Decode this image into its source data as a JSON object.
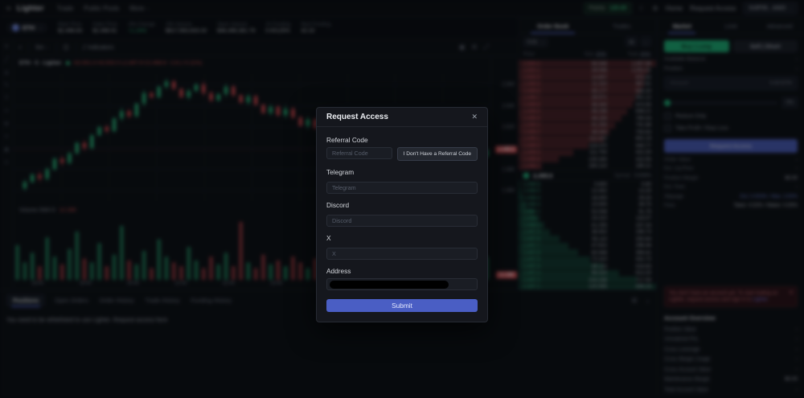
{
  "topnav": {
    "brand": "Lighter",
    "items": [
      {
        "label": "Trade",
        "caret": false
      },
      {
        "label": "Public Pools",
        "caret": false
      },
      {
        "label": "More",
        "caret": true
      }
    ],
    "badge": {
      "label": "Points:",
      "value": "125.00"
    },
    "home_label": "Home",
    "request_access_label": "Request Access",
    "wallet": "0x9F56...4A83"
  },
  "ticker": {
    "symbol": "ETH",
    "stats": [
      {
        "label": "Mark Price",
        "value": "$2,498.63"
      },
      {
        "label": "Index Price",
        "value": "$2,498.91"
      },
      {
        "label": "24h Change",
        "value": "+1.24%",
        "color": "#2ec27e"
      },
      {
        "label": "24h Volume",
        "value": "$617,563,633.33"
      },
      {
        "label": "Open Interest",
        "value": "$46,496,381.79"
      },
      {
        "label": "1h Funding",
        "value": "0.00125%"
      },
      {
        "label": "Next Funding",
        "value": "42:15"
      }
    ]
  },
  "chart": {
    "toolbar": {
      "search": "⌕",
      "timeframe": "5m",
      "indicators_label": "Indicators"
    },
    "tools": [
      "crosshair",
      "trendline",
      "fibonacci",
      "brush",
      "text",
      "measure",
      "zoom",
      "target",
      "record",
      "menu"
    ],
    "legend": {
      "title": "ETH · 5 · Lighter",
      "ohlc": "O2,501.4  H2,502.0  L2,497.9  C2,498.6  −2.8 (−0.11%)"
    },
    "volume_label": "Volume SMA 9",
    "volume_value": "12.28K"
  },
  "chart_data": {
    "type": "candlestick+volume",
    "title": "ETH / 5m / Lighter",
    "ylim": [
      2450,
      2570
    ],
    "price_ticks": [
      2560,
      2540,
      2520,
      2500,
      2480,
      2460
    ],
    "time_ticks": [
      "18:00",
      "19:00",
      "20:00",
      "21:00",
      "22:00",
      "23:00",
      "00:00",
      "01:00",
      "02:00",
      "03:00"
    ],
    "closes": [
      2462,
      2468,
      2475,
      2471,
      2480,
      2490,
      2486,
      2495,
      2505,
      2500,
      2512,
      2520,
      2516,
      2528,
      2535,
      2530,
      2542,
      2552,
      2548,
      2558,
      2563,
      2556,
      2548,
      2554,
      2560,
      2552,
      2545,
      2551,
      2558,
      2550,
      2543,
      2549,
      2541,
      2533,
      2539,
      2531,
      2537,
      2529,
      2521,
      2527,
      2519,
      2511,
      2517,
      2509,
      2501,
      2507,
      2499,
      2491,
      2497,
      2489,
      2481,
      2487,
      2479,
      2471,
      2477,
      2469,
      2463,
      2470,
      2476,
      2482,
      2489,
      2485,
      2492,
      2498.6
    ],
    "volumes": [
      18,
      9,
      14,
      7,
      22,
      12,
      8,
      16,
      25,
      11,
      9,
      19,
      7,
      13,
      28,
      10,
      8,
      15,
      6,
      21,
      12,
      9,
      7,
      17,
      10,
      6,
      12,
      8,
      14,
      7,
      30,
      9,
      6,
      13,
      8,
      10,
      7,
      12,
      9,
      6,
      11,
      8,
      13,
      7,
      10,
      15,
      8,
      6,
      12,
      9,
      7,
      14,
      10,
      8,
      6,
      11,
      9,
      12,
      15,
      9,
      7,
      13,
      10,
      12
    ],
    "volume_max": 30,
    "last_price": 2498.6,
    "last_price_label": "2,498.6",
    "last_volume_label": "12.28K",
    "up_color": "#20b977",
    "down_color": "#e5484d"
  },
  "orderbook": {
    "tabs": [
      "Order Book",
      "Trades"
    ],
    "tick": "0.01",
    "headers": {
      "price": "Price",
      "size": "Size",
      "total": "Total",
      "unit": "ETH"
    },
    "asks": [
      [
        "2,500.2",
        "56.948",
        "1,057.96",
        100
      ],
      [
        "2,500.1",
        "28.598",
        "1,001.01",
        95
      ],
      [
        "2,500.0",
        "14.807",
        "972.42",
        92
      ],
      [
        "2,499.9",
        "11.310",
        "957.61",
        91
      ],
      [
        "2,499.8",
        "45.177",
        "946.30",
        89
      ],
      [
        "2,499.7",
        "26.571",
        "901.12",
        85
      ],
      [
        "2,499.6",
        "36.343",
        "874.55",
        83
      ],
      [
        "2,499.5",
        "48.168",
        "838.21",
        79
      ],
      [
        "2,499.4",
        "48.155",
        "790.04",
        75
      ],
      [
        "2,499.3",
        "41.254",
        "741.88",
        70
      ],
      [
        "2,499.2",
        "48.440",
        "700.63",
        66
      ],
      [
        "2,499.1",
        "111.420",
        "652.19",
        62
      ],
      [
        "2,499.0",
        "118.470",
        "540.77",
        51
      ],
      [
        "2,498.9",
        "111.750",
        "422.30",
        40
      ],
      [
        "2,498.8",
        "130.340",
        "310.55",
        29
      ],
      [
        "2,498.7",
        "180.210",
        "180.21",
        17
      ]
    ],
    "mid": {
      "price": "2,498.6",
      "spread_label": "Spread",
      "spread": "0.004%"
    },
    "bids": [
      [
        "2,498.6",
        "0.800",
        "0.80",
        1
      ],
      [
        "2,498.5",
        "12.452",
        "13.25",
        2
      ],
      [
        "2,498.4",
        "16.000",
        "29.25",
        3
      ],
      [
        "2,498.3",
        "10.500",
        "39.75",
        5
      ],
      [
        "2,498.2",
        "52.008",
        "91.76",
        11
      ],
      [
        "2,498.1",
        "24.310",
        "116.07",
        14
      ],
      [
        "2,498.0",
        "41.255",
        "157.33",
        19
      ],
      [
        "2,497.9",
        "38.402",
        "195.73",
        23
      ],
      [
        "2,497.8",
        "55.110",
        "250.84",
        30
      ],
      [
        "2,497.7",
        "47.622",
        "298.46",
        36
      ],
      [
        "2,497.6",
        "60.948",
        "359.41",
        43
      ],
      [
        "2,497.5",
        "72.310",
        "431.72",
        52
      ],
      [
        "2,497.4",
        "85.114",
        "516.83",
        62
      ],
      [
        "2,497.3",
        "96.420",
        "613.25",
        73
      ],
      [
        "2,497.2",
        "104.338",
        "717.59",
        86
      ],
      [
        "2,497.1",
        "120.565",
        "838.16",
        100
      ]
    ]
  },
  "trade": {
    "tabs": [
      "Market",
      "Limit",
      "Advanced"
    ],
    "buy_label": "Buy | Long",
    "sell_label": "Sell | Short",
    "balance_label": "Available Balance",
    "balance_value": "-",
    "position_label": "Position",
    "position_value": "-",
    "amount_label": "Amount",
    "amount_value": "0.00 ETH",
    "slider_value": "0%",
    "reduce_only_label": "Reduce Only",
    "tpsl_label": "Take Profit / Stop Loss",
    "cta_label": "Request Access",
    "rows": [
      {
        "label": "Order Value",
        "value": "-"
      },
      {
        "label": "Est. Liq Price",
        "value": "-"
      },
      {
        "label": "Position Margin",
        "value": "$0.00"
      },
      {
        "label": "Est. Fees",
        "value": "-"
      },
      {
        "label": "Slippage",
        "value": "Est: 0.003% / Max: 3.50%",
        "accent": "blue"
      },
      {
        "label": "Fees",
        "value": "Taker: 0.02% / Maker: 0.00%"
      }
    ],
    "banner": {
      "text": "You don't have an account yet. To start trading on Lighter, request access and sign in to",
      "link": "Lighter",
      "suffix": ".",
      "close": "✕"
    },
    "overview_title": "Account Overview",
    "overview_rows": [
      {
        "label": "Position Value",
        "value": "-"
      },
      {
        "label": "Unrealized PnL",
        "value": "-"
      },
      {
        "label": "Cross Leverage",
        "value": "-"
      },
      {
        "label": "Cross Margin Usage",
        "value": "-"
      },
      {
        "label": "Cross Account Value",
        "value": "-"
      },
      {
        "label": "Maintenance Margin",
        "value": "$0.00"
      },
      {
        "label": "Total Account Value",
        "value": "-"
      }
    ]
  },
  "bottom": {
    "tabs": [
      {
        "label": "Positions",
        "active": true
      },
      {
        "label": "Open Orders",
        "active": false
      },
      {
        "label": "Order History",
        "active": false
      },
      {
        "label": "Trade History",
        "active": false
      },
      {
        "label": "Funding History",
        "active": false
      }
    ],
    "message": "You need to be whitelisted to use Lighter. Request access here"
  },
  "modal": {
    "title": "Request Access",
    "close": "✕",
    "referral_label": "Referral Code",
    "referral_placeholder": "Referral Code",
    "referral_button": "I Don't Have a Referral Code",
    "telegram_label": "Telegram",
    "telegram_placeholder": "Telegram",
    "discord_label": "Discord",
    "discord_placeholder": "Discord",
    "x_label": "X",
    "x_placeholder": "X",
    "address_label": "Address",
    "submit_label": "Submit"
  }
}
